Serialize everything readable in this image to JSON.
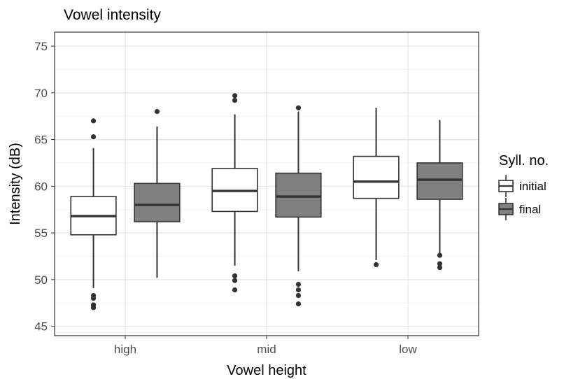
{
  "chart_data": {
    "type": "boxplot",
    "title": "Vowel intensity",
    "xlabel": "Vowel height",
    "ylabel": "Intensity (dB)",
    "ylim": [
      44,
      76.5
    ],
    "yticks": [
      45,
      50,
      55,
      60,
      65,
      70,
      75
    ],
    "categories": [
      "high",
      "mid",
      "low"
    ],
    "grid": true,
    "legend": {
      "title": "Syll. no.",
      "position": "right"
    },
    "series": [
      {
        "name": "initial",
        "color": "#ffffff",
        "boxes": [
          {
            "category": "high",
            "min": 49.1,
            "q1": 54.8,
            "median": 56.8,
            "q3": 58.9,
            "max": 64.1,
            "outliers": [
              65.3,
              67.0,
              48.3,
              48.0,
              47.3,
              47.0
            ]
          },
          {
            "category": "mid",
            "min": 51.5,
            "q1": 57.3,
            "median": 59.5,
            "q3": 61.9,
            "max": 67.7,
            "outliers": [
              69.2,
              69.7,
              50.4,
              49.9,
              48.9
            ]
          },
          {
            "category": "low",
            "min": 52.1,
            "q1": 58.7,
            "median": 60.5,
            "q3": 63.2,
            "max": 68.4,
            "outliers": [
              51.6
            ]
          }
        ]
      },
      {
        "name": "final",
        "color": "#808080",
        "boxes": [
          {
            "category": "high",
            "min": 50.2,
            "q1": 56.2,
            "median": 58.0,
            "q3": 60.3,
            "max": 66.4,
            "outliers": [
              68.0
            ]
          },
          {
            "category": "mid",
            "min": 50.9,
            "q1": 56.7,
            "median": 58.9,
            "q3": 61.4,
            "max": 68.0,
            "outliers": [
              68.4,
              49.5,
              48.9,
              48.3,
              47.4
            ]
          },
          {
            "category": "low",
            "min": 52.8,
            "q1": 58.6,
            "median": 60.7,
            "q3": 62.5,
            "max": 67.1,
            "outliers": [
              52.6,
              51.7,
              51.3
            ]
          }
        ]
      }
    ]
  }
}
